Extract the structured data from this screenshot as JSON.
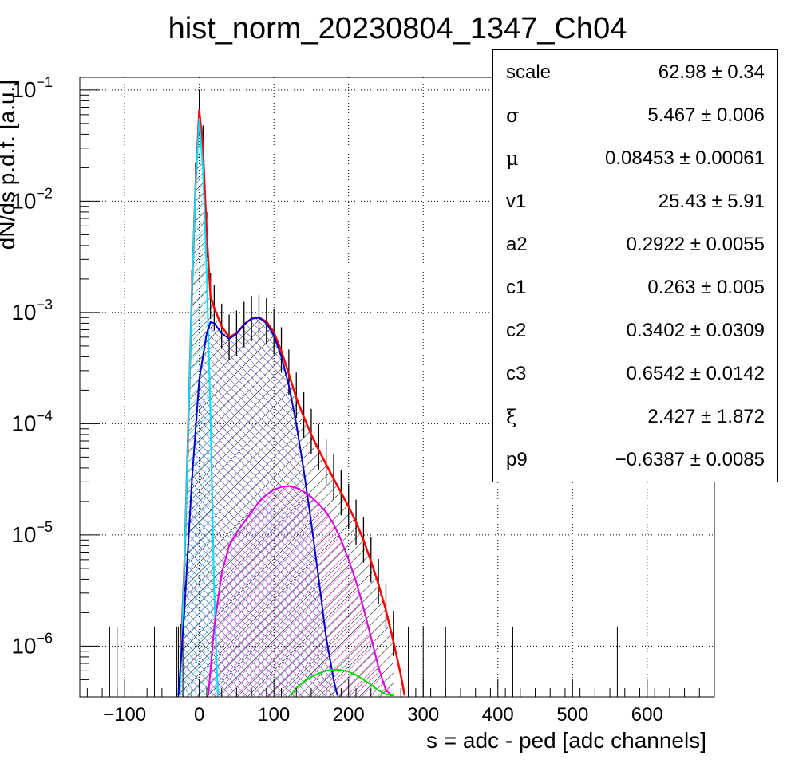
{
  "chart_data": {
    "type": "line",
    "title": "hist_norm_20230804_1347_Ch04",
    "xlabel": "s = adc - ped [adc channels]",
    "ylabel": "dN/ds p.d.f. [a.u.]",
    "xlim": [
      -160,
      690
    ],
    "ylim": [
      3.5e-07,
      0.13
    ],
    "y_scale": "log",
    "grid": true,
    "x_ticks": [
      {
        "value": -100,
        "label": "−100"
      },
      {
        "value": 0,
        "label": "0"
      },
      {
        "value": 100,
        "label": "100"
      },
      {
        "value": 200,
        "label": "200"
      },
      {
        "value": 300,
        "label": "300"
      },
      {
        "value": 400,
        "label": "400"
      },
      {
        "value": 500,
        "label": "500"
      },
      {
        "value": 600,
        "label": "600"
      }
    ],
    "y_ticks": [
      {
        "value": 1e-06,
        "base": "10",
        "exp": "−6"
      },
      {
        "value": 1e-05,
        "base": "10",
        "exp": "−5"
      },
      {
        "value": 0.0001,
        "base": "10",
        "exp": "−4"
      },
      {
        "value": 0.001,
        "base": "10",
        "exp": "−3"
      },
      {
        "value": 0.01,
        "base": "10",
        "exp": "−2"
      },
      {
        "value": 0.1,
        "base": "10",
        "exp": "−1"
      }
    ],
    "series": [
      {
        "role": "data-histogram",
        "color": "#000000",
        "x": [
          -25,
          -20,
          -15,
          -10,
          -5,
          0,
          5,
          10,
          15,
          20,
          30,
          40,
          50,
          60,
          70,
          80,
          90,
          100,
          110,
          120,
          130,
          140,
          150,
          160,
          170,
          180,
          190,
          200,
          210,
          220,
          230,
          240,
          250,
          260
        ],
        "values": [
          1e-06,
          5e-06,
          8e-05,
          0.0015,
          0.014,
          0.063,
          0.03,
          0.005,
          0.0014,
          0.0011,
          0.00075,
          0.0006,
          0.00065,
          0.00078,
          0.00088,
          0.0009,
          0.00084,
          0.00067,
          0.00046,
          0.00029,
          0.00018,
          0.00012,
          8.5e-05,
          6.2e-05,
          4.5e-05,
          3.3e-05,
          2.4e-05,
          1.8e-05,
          1.3e-05,
          9e-06,
          6e-06,
          3.8e-06,
          2.3e-06,
          1.3e-06
        ]
      },
      {
        "role": "total-fit",
        "color": "#ff0000",
        "x": [
          -25,
          -20,
          -15,
          -10,
          -5,
          0,
          5,
          10,
          15,
          20,
          30,
          40,
          50,
          60,
          70,
          80,
          90,
          100,
          110,
          120,
          130,
          140,
          150,
          160,
          170,
          180,
          190,
          200,
          210,
          220,
          230,
          240,
          250,
          260,
          270,
          275
        ],
        "values": [
          8e-07,
          5e-06,
          8e-05,
          0.0014,
          0.014,
          0.066,
          0.03,
          0.005,
          0.0014,
          0.0011,
          0.00075,
          0.0006,
          0.00065,
          0.00078,
          0.00088,
          0.0009,
          0.00083,
          0.00066,
          0.00045,
          0.00028,
          0.00017,
          0.000115,
          8e-05,
          5.8e-05,
          4.3e-05,
          3.2e-05,
          2.4e-05,
          1.8e-05,
          1.3e-05,
          9e-06,
          5.8e-06,
          3.6e-06,
          2.1e-06,
          1.1e-06,
          5.5e-07,
          3.6e-07
        ]
      },
      {
        "role": "pedestal",
        "color": "#00e0ff",
        "x": [
          -26,
          -20,
          -15,
          -10,
          -5,
          0,
          5,
          10,
          15,
          20,
          25
        ],
        "values": [
          3.6e-07,
          5e-06,
          8e-05,
          0.0014,
          0.014,
          0.055,
          0.019,
          0.0022,
          0.00012,
          3e-06,
          3.6e-07
        ]
      },
      {
        "role": "single-pe",
        "color": "#0000cc",
        "x": [
          -28,
          -20,
          -10,
          0,
          10,
          15,
          20,
          30,
          40,
          50,
          60,
          70,
          80,
          90,
          100,
          110,
          120,
          130,
          140,
          150,
          160,
          170,
          180,
          185
        ],
        "values": [
          3.6e-07,
          2e-06,
          3e-05,
          0.00025,
          0.00065,
          0.00082,
          0.0008,
          0.00065,
          0.00058,
          0.00064,
          0.00078,
          0.00088,
          0.0009,
          0.0008,
          0.00062,
          0.0004,
          0.00022,
          0.0001,
          3.8e-05,
          1.3e-05,
          4e-06,
          1.2e-06,
          5e-07,
          3.6e-07
        ]
      },
      {
        "role": "two-pe",
        "color": "#e000e0",
        "x": [
          12,
          20,
          30,
          40,
          50,
          60,
          70,
          80,
          90,
          100,
          110,
          120,
          130,
          140,
          150,
          160,
          170,
          180,
          190,
          200,
          210,
          220,
          230,
          240,
          250,
          258
        ],
        "values": [
          3.6e-07,
          1.5e-06,
          4.5e-06,
          8e-06,
          1.05e-05,
          1.3e-05,
          1.6e-05,
          2e-05,
          2.3e-05,
          2.55e-05,
          2.7e-05,
          2.75e-05,
          2.65e-05,
          2.45e-05,
          2.2e-05,
          1.9e-05,
          1.6e-05,
          1.25e-05,
          9e-06,
          6e-06,
          3.8e-06,
          2.2e-06,
          1.2e-06,
          6.5e-07,
          4e-07,
          3.6e-07
        ]
      },
      {
        "role": "three-pe",
        "color": "#00dd00",
        "x": [
          122,
          130,
          140,
          150,
          160,
          170,
          180,
          190,
          200,
          210,
          220,
          230,
          240,
          250,
          260
        ],
        "values": [
          3.6e-07,
          4.2e-07,
          4.8e-07,
          5.3e-07,
          5.7e-07,
          6e-07,
          6.15e-07,
          6.1e-07,
          5.9e-07,
          5.5e-07,
          5e-07,
          4.5e-07,
          4e-07,
          3.7e-07,
          3.6e-07
        ]
      }
    ]
  },
  "stats": [
    {
      "name": "scale",
      "value": "62.98 ± 0.34"
    },
    {
      "name": "σ",
      "value": "5.467 ± 0.006",
      "greek": true
    },
    {
      "name": "μ",
      "value": "0.08453 ± 0.00061",
      "greek": true
    },
    {
      "name": "v1",
      "value": "25.43 ± 5.91"
    },
    {
      "name": "a2",
      "value": "0.2922 ± 0.0055"
    },
    {
      "name": "c1",
      "value": "0.263 ± 0.005"
    },
    {
      "name": "c2",
      "value": "0.3402 ± 0.0309"
    },
    {
      "name": "c3",
      "value": "0.6542 ± 0.0142"
    },
    {
      "name": "ξ",
      "value": "2.427 ± 1.872",
      "greek": true
    },
    {
      "name": "p9",
      "value": "−0.6387 ± 0.0085"
    }
  ]
}
